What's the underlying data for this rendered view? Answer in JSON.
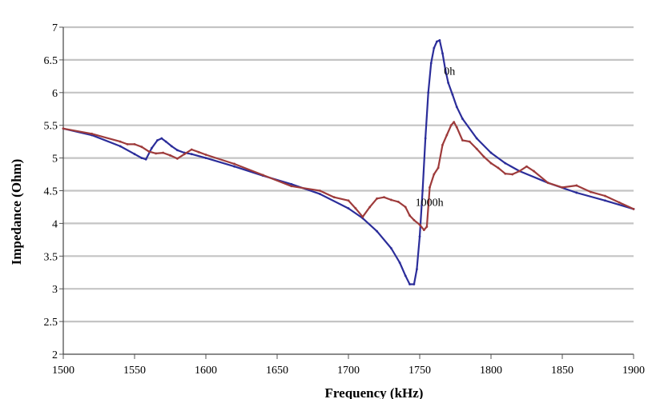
{
  "chart_data": {
    "type": "line",
    "title": "",
    "xlabel": "Frequency (kHz)",
    "ylabel": "Impedance (Ohm)",
    "xlim": [
      1500,
      1900
    ],
    "ylim": [
      2,
      7
    ],
    "xticks": [
      "1500",
      "1550",
      "1600",
      "1650",
      "1700",
      "1750",
      "1800",
      "1850",
      "1900"
    ],
    "yticks": [
      "2",
      "2.5",
      "3",
      "3.5",
      "4",
      "4.5",
      "5",
      "5.5",
      "6",
      "6.5",
      "7"
    ],
    "grid": true,
    "annotations": [
      {
        "text": "0h",
        "x": 1767,
        "y": 6.27
      },
      {
        "text": "1000h",
        "x": 1747,
        "y": 4.27
      }
    ],
    "series": [
      {
        "name": "0h",
        "color": "#2b2d9a",
        "x": [
          1500,
          1520,
          1540,
          1550,
          1555,
          1558,
          1562,
          1566,
          1569,
          1572,
          1576,
          1580,
          1585,
          1590,
          1600,
          1620,
          1640,
          1660,
          1680,
          1700,
          1710,
          1720,
          1730,
          1736,
          1740,
          1743,
          1746,
          1748,
          1750,
          1752,
          1754,
          1756,
          1758,
          1760,
          1762,
          1764,
          1766,
          1768,
          1770,
          1773,
          1776,
          1780,
          1790,
          1800,
          1810,
          1820,
          1840,
          1860,
          1880,
          1900
        ],
        "y": [
          5.45,
          5.35,
          5.18,
          5.06,
          5.0,
          4.98,
          5.15,
          5.27,
          5.3,
          5.25,
          5.18,
          5.12,
          5.08,
          5.06,
          5.0,
          4.87,
          4.73,
          4.6,
          4.45,
          4.23,
          4.08,
          3.88,
          3.62,
          3.4,
          3.2,
          3.07,
          3.07,
          3.3,
          3.8,
          4.5,
          5.3,
          6.0,
          6.45,
          6.68,
          6.78,
          6.8,
          6.6,
          6.35,
          6.15,
          5.97,
          5.78,
          5.6,
          5.3,
          5.08,
          4.92,
          4.8,
          4.62,
          4.47,
          4.35,
          4.22
        ]
      },
      {
        "name": "1000h",
        "color": "#9e3b3b",
        "x": [
          1500,
          1520,
          1540,
          1545,
          1550,
          1555,
          1560,
          1565,
          1570,
          1575,
          1580,
          1585,
          1590,
          1595,
          1600,
          1620,
          1640,
          1660,
          1680,
          1690,
          1700,
          1705,
          1710,
          1715,
          1720,
          1725,
          1730,
          1735,
          1740,
          1743,
          1746,
          1750,
          1753,
          1755,
          1757,
          1760,
          1763,
          1766,
          1769,
          1772,
          1774,
          1776,
          1780,
          1785,
          1790,
          1795,
          1800,
          1805,
          1810,
          1815,
          1820,
          1825,
          1830,
          1840,
          1850,
          1860,
          1870,
          1880,
          1890,
          1900
        ],
        "y": [
          5.45,
          5.37,
          5.25,
          5.21,
          5.21,
          5.17,
          5.1,
          5.07,
          5.08,
          5.04,
          4.99,
          5.06,
          5.13,
          5.09,
          5.05,
          4.91,
          4.74,
          4.57,
          4.5,
          4.4,
          4.35,
          4.23,
          4.1,
          4.25,
          4.38,
          4.4,
          4.36,
          4.33,
          4.25,
          4.12,
          4.05,
          3.98,
          3.9,
          3.95,
          4.55,
          4.75,
          4.85,
          5.2,
          5.35,
          5.5,
          5.55,
          5.47,
          5.27,
          5.25,
          5.14,
          5.02,
          4.92,
          4.85,
          4.76,
          4.75,
          4.8,
          4.87,
          4.8,
          4.62,
          4.55,
          4.58,
          4.48,
          4.42,
          4.32,
          4.22
        ]
      }
    ]
  }
}
